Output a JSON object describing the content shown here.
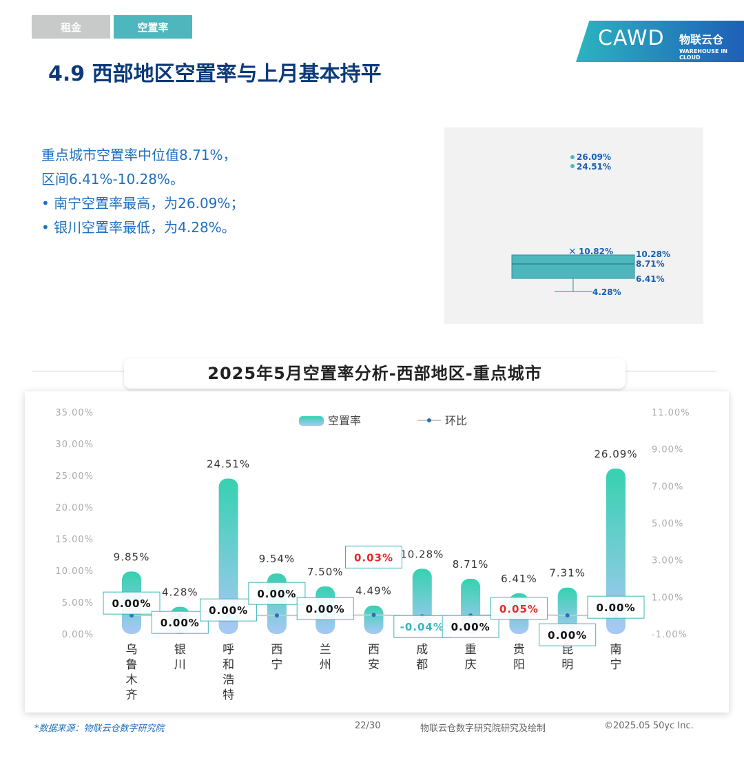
{
  "tabs": [
    "租金",
    "空置率"
  ],
  "logo": {
    "cawd": "CAWD",
    "brand": "物联云仓",
    "brand_en": "WAREHOUSE IN CLOUD"
  },
  "title": "4.9 西部地区空置率与上月基本持平",
  "summary": [
    "重点城市空置率中位值8.71%，",
    "区间6.41%-10.28%。",
    "•  南宁空置率最高，为26.09%；",
    "•  银川空置率最低，为4.28%。"
  ],
  "boxplot": {
    "outliers": [
      "26.09%",
      "24.51%"
    ],
    "mean": "10.82%",
    "q3": "10.28%",
    "median": "8.71%",
    "q1": "6.41%",
    "min": "4.28%",
    "colors": {
      "box": "#4db7bd"
    }
  },
  "chart_title": "2025年5月空置率分析-西部地区-重点城市",
  "chart_data": {
    "type": "bar+line",
    "categories": [
      "乌鲁木齐",
      "银川",
      "呼和浩特",
      "西宁",
      "兰州",
      "西安",
      "成都",
      "重庆",
      "贵阳",
      "昆明",
      "南宁"
    ],
    "series": [
      {
        "name": "空置率",
        "type": "bar",
        "axis": "left",
        "values": [
          9.85,
          4.28,
          24.51,
          9.54,
          7.5,
          4.49,
          10.28,
          8.71,
          6.41,
          7.31,
          26.09
        ],
        "labels": [
          "9.85%",
          "4.28%",
          "24.51%",
          "9.54%",
          "7.50%",
          "4.49%",
          "10.28%",
          "8.71%",
          "6.41%",
          "7.31%",
          "26.09%"
        ]
      },
      {
        "name": "环比",
        "type": "line",
        "axis": "right",
        "values": [
          0.0,
          0.0,
          0.0,
          0.0,
          0.0,
          0.03,
          -0.04,
          0.0,
          0.05,
          0.0,
          0.0
        ],
        "labels": [
          "0.00%",
          "0.00%",
          "0.00%",
          "0.00%",
          "0.00%",
          "0.03%",
          "-0.04%",
          "0.00%",
          "0.05%",
          "0.00%",
          "0.00%"
        ]
      }
    ],
    "y_left": {
      "min": 0,
      "max": 35,
      "ticks": [
        "0.00%",
        "5.00%",
        "10.00%",
        "15.00%",
        "20.00%",
        "25.00%",
        "30.00%",
        "35.00%"
      ]
    },
    "y_right": {
      "min": -1,
      "max": 11,
      "ticks": [
        "-1.00%",
        "1.00%",
        "3.00%",
        "5.00%",
        "7.00%",
        "9.00%",
        "11.00%"
      ]
    },
    "legend": "top-center",
    "grid": false,
    "colors": {
      "bar_top": "#36d1b0",
      "bar_bottom": "#a9c8f5",
      "line": "#c8c8c8",
      "point": "#2a6fbd",
      "positive": "#e8262b",
      "negative": "#3bb5b8",
      "neutral": "#111111"
    }
  },
  "footer": {
    "source": "*数据来源：物联云仓数字研究院",
    "page": "22/30",
    "credit": "物联云仓数字研究院研究及绘制",
    "copyright": "©2025.05 50yc Inc."
  }
}
